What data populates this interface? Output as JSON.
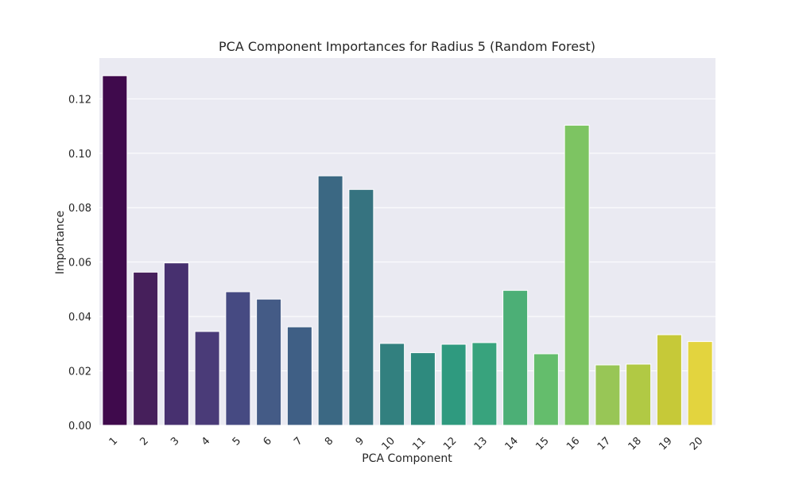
{
  "chart_data": {
    "type": "bar",
    "title": "PCA Component Importances for Radius 5 (Random Forest)",
    "xlabel": "PCA Component",
    "ylabel": "Importance",
    "categories": [
      "1",
      "2",
      "3",
      "4",
      "5",
      "6",
      "7",
      "8",
      "9",
      "10",
      "11",
      "12",
      "13",
      "14",
      "15",
      "16",
      "17",
      "18",
      "19",
      "20"
    ],
    "values": [
      0.1285,
      0.0563,
      0.0597,
      0.0345,
      0.0491,
      0.0464,
      0.0362,
      0.0917,
      0.0867,
      0.0301,
      0.0267,
      0.0298,
      0.0304,
      0.0496,
      0.0263,
      0.1103,
      0.0222,
      0.0225,
      0.0333,
      0.0308
    ],
    "colors": [
      "#440154",
      "#481c6e",
      "#453581",
      "#3d4d8a",
      "#34618d",
      "#2b748e",
      "#24878e",
      "#1f998a",
      "#25ac82",
      "#40bc72",
      "#67cc5c",
      "#97d83f",
      "#cbe11e",
      "#fde725"
    ],
    "bar_colors": [
      "#3f0a4c",
      "#461f5b",
      "#47306f",
      "#4a3b78",
      "#464a82",
      "#445b86",
      "#3f5f85",
      "#3b6883",
      "#367380",
      "#32807f",
      "#2e8a7e",
      "#2f9a7f",
      "#38a37d",
      "#4caf76",
      "#64bd6c",
      "#7dc462",
      "#98c656",
      "#b1c944",
      "#c6c938",
      "#e3d43e"
    ],
    "yticks": [
      "0.00",
      "0.02",
      "0.04",
      "0.06",
      "0.08",
      "0.10",
      "0.12"
    ],
    "ylim": [
      0,
      0.135
    ],
    "grid": true,
    "legend": "none"
  }
}
